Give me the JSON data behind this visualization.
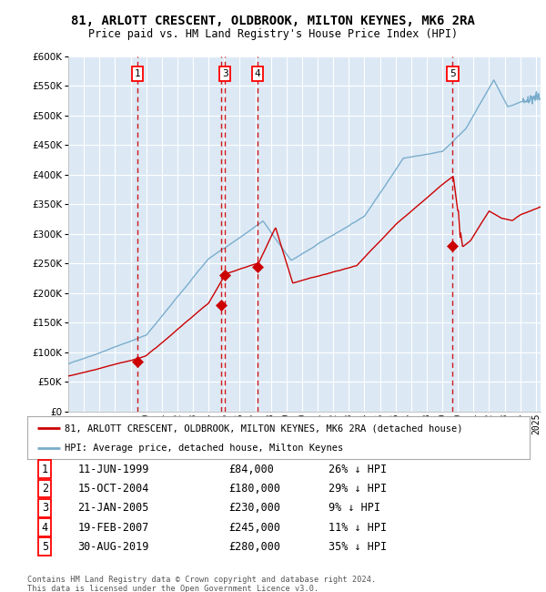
{
  "title": "81, ARLOTT CRESCENT, OLDBROOK, MILTON KEYNES, MK6 2RA",
  "subtitle": "Price paid vs. HM Land Registry's House Price Index (HPI)",
  "ylim": [
    0,
    600000
  ],
  "yticks": [
    0,
    50000,
    100000,
    150000,
    200000,
    250000,
    300000,
    350000,
    400000,
    450000,
    500000,
    550000,
    600000
  ],
  "xlim_start": 1995.0,
  "xlim_end": 2025.3,
  "bg_color": "#dce9f5",
  "grid_color": "#ffffff",
  "transactions": [
    {
      "num": 1,
      "date": "11-JUN-1999",
      "price": 84000,
      "year": 1999.44,
      "hpi_pct": "26% ↓ HPI",
      "show_top": true
    },
    {
      "num": 2,
      "date": "15-OCT-2004",
      "price": 180000,
      "year": 2004.79,
      "hpi_pct": "29% ↓ HPI",
      "show_top": false
    },
    {
      "num": 3,
      "date": "21-JAN-2005",
      "price": 230000,
      "year": 2005.06,
      "hpi_pct": "9% ↓ HPI",
      "show_top": true
    },
    {
      "num": 4,
      "date": "19-FEB-2007",
      "price": 245000,
      "year": 2007.13,
      "hpi_pct": "11% ↓ HPI",
      "show_top": true
    },
    {
      "num": 5,
      "date": "30-AUG-2019",
      "price": 280000,
      "year": 2019.66,
      "hpi_pct": "35% ↓ HPI",
      "show_top": true
    }
  ],
  "legend_house_label": "81, ARLOTT CRESCENT, OLDBROOK, MILTON KEYNES, MK6 2RA (detached house)",
  "legend_hpi_label": "HPI: Average price, detached house, Milton Keynes",
  "footer": "Contains HM Land Registry data © Crown copyright and database right 2024.\nThis data is licensed under the Open Government Licence v3.0.",
  "house_color": "#cc0000",
  "hpi_color": "#7aadcc",
  "vline_color": "#cc0000",
  "marker_color": "#cc0000",
  "title_fontsize": 10,
  "subtitle_fontsize": 8.5
}
